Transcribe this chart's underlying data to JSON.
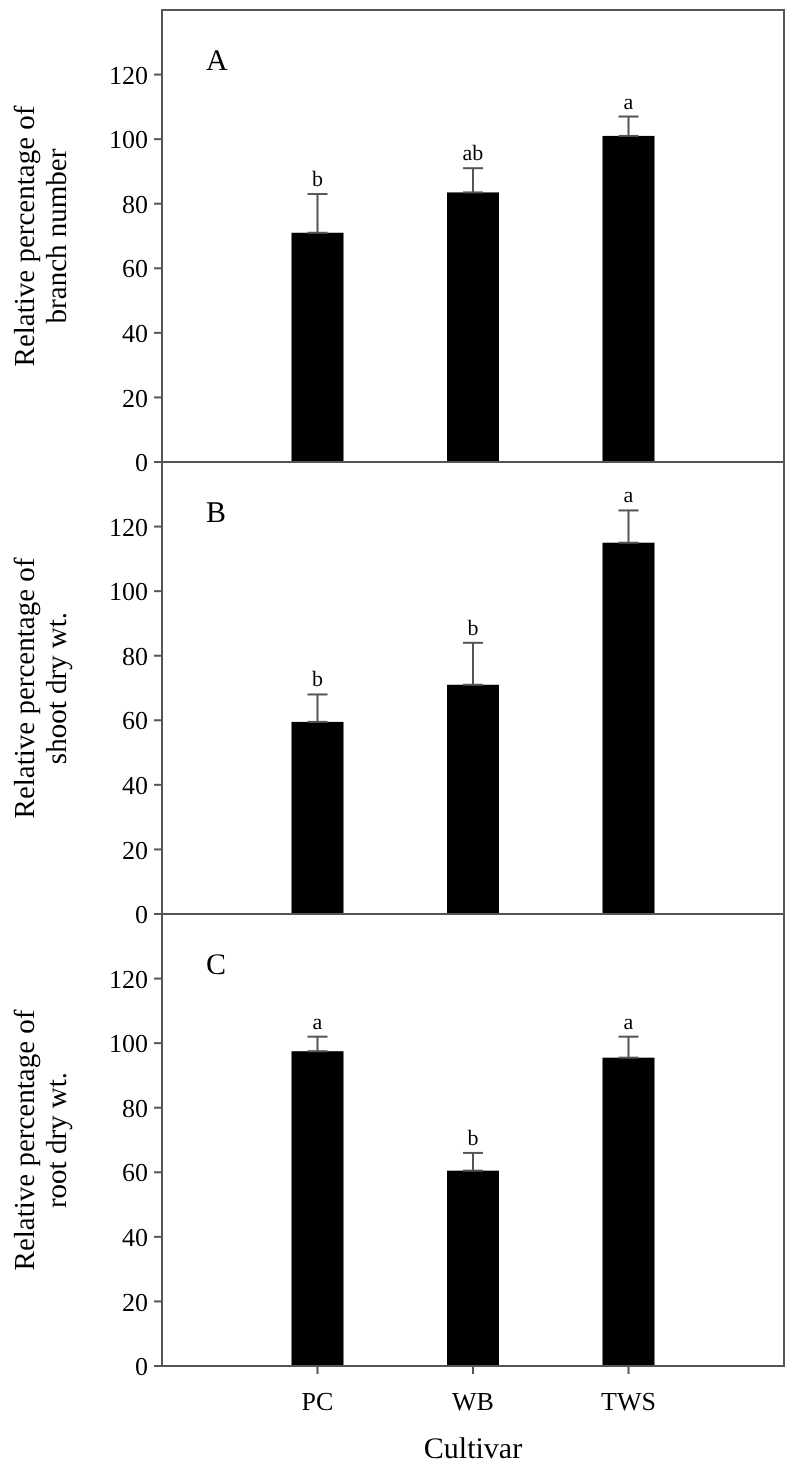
{
  "chart_data": [
    {
      "type": "bar",
      "title": "A",
      "ylabel": "Relative percentage of\nbranch number",
      "categories": [
        "PC",
        "WB",
        "TWS"
      ],
      "values": [
        71,
        83.5,
        101
      ],
      "errors": [
        [
          71,
          83
        ],
        [
          83.5,
          91
        ],
        [
          101,
          107
        ]
      ],
      "color": "#000000",
      "ylim": [
        0,
        140
      ],
      "yticks": [
        0,
        20,
        40,
        60,
        80,
        100,
        120
      ],
      "tick_labels": "y",
      "grid": false,
      "annotations": [
        {
          "text": "b",
          "x": "PC",
          "y": 83
        },
        {
          "text": "ab",
          "x": "WB",
          "y": 91
        },
        {
          "text": "a",
          "x": "TWS",
          "y": 107
        }
      ]
    },
    {
      "type": "bar",
      "title": "B",
      "ylabel": "Relative percentage of\nshoot dry wt.",
      "categories": [
        "PC",
        "WB",
        "TWS"
      ],
      "values": [
        59.5,
        71,
        115
      ],
      "errors": [
        [
          59.5,
          68
        ],
        [
          71,
          84
        ],
        [
          115,
          125
        ]
      ],
      "color": "#000000",
      "ylim": [
        0,
        140
      ],
      "yticks": [
        0,
        20,
        40,
        60,
        80,
        100,
        120
      ],
      "tick_labels": "y",
      "grid": false,
      "annotations": [
        {
          "text": "b",
          "x": "PC",
          "y": 68
        },
        {
          "text": "b",
          "x": "WB",
          "y": 84
        },
        {
          "text": "a",
          "x": "TWS",
          "y": 125
        }
      ]
    },
    {
      "type": "bar",
      "title": "C",
      "ylabel": "Relative percentage of\nroot dry wt.",
      "xlabel": "Cultivar",
      "categories": [
        "PC",
        "WB",
        "TWS"
      ],
      "values": [
        97.5,
        60.5,
        95.5
      ],
      "errors": [
        [
          97.5,
          102
        ],
        [
          60.5,
          66
        ],
        [
          95.5,
          102
        ]
      ],
      "color": "#000000",
      "ylim": [
        0,
        140
      ],
      "yticks": [
        0,
        20,
        40,
        60,
        80,
        100,
        120
      ],
      "grid": false,
      "annotations": [
        {
          "text": "a",
          "x": "PC",
          "y": 102
        },
        {
          "text": "b",
          "x": "WB",
          "y": 66
        },
        {
          "text": "a",
          "x": "TWS",
          "y": 102
        }
      ]
    }
  ]
}
